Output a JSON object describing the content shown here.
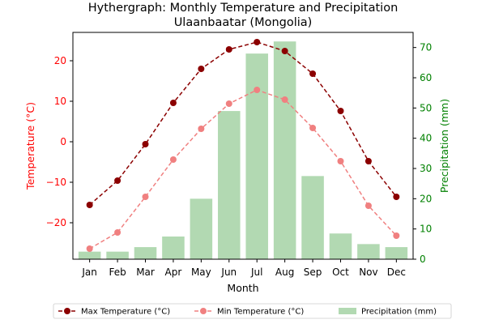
{
  "chart_data": {
    "type": "bar",
    "title": "Hythergraph: Monthly Temperature and Precipitation",
    "subtitle": "Ulaanbaatar (Mongolia)",
    "xlabel": "Month",
    "categories": [
      "Jan",
      "Feb",
      "Mar",
      "Apr",
      "May",
      "Jun",
      "Jul",
      "Aug",
      "Sep",
      "Oct",
      "Nov",
      "Dec"
    ],
    "left_axis": {
      "label": "Temperature (°C)",
      "color": "#ff0000",
      "lim": [
        -29,
        27
      ],
      "ticks": [
        -20,
        -10,
        0,
        10,
        20
      ],
      "tick_labels": [
        "−20",
        "−10",
        "0",
        "10",
        "20"
      ]
    },
    "right_axis": {
      "label": "Precipitation (mm)",
      "color": "#008000",
      "lim": [
        0,
        75
      ],
      "ticks": [
        0,
        10,
        20,
        30,
        40,
        50,
        60,
        70
      ],
      "tick_labels": [
        "0",
        "10",
        "20",
        "30",
        "40",
        "50",
        "60",
        "70"
      ]
    },
    "series": [
      {
        "name": "Max Temperature (°C)",
        "kind": "line",
        "axis": "left",
        "color": "#8b0000",
        "style": "dashed-marker",
        "values": [
          -15.6,
          -9.6,
          -0.6,
          9.6,
          18.0,
          22.8,
          24.6,
          22.4,
          16.8,
          7.6,
          -4.8,
          -13.6
        ]
      },
      {
        "name": "Min Temperature (°C)",
        "kind": "line",
        "axis": "left",
        "color": "#f08080",
        "style": "dashed-marker",
        "values": [
          -26.4,
          -22.4,
          -13.6,
          -4.4,
          3.2,
          9.4,
          12.8,
          10.4,
          3.4,
          -4.8,
          -15.8,
          -23.2
        ]
      },
      {
        "name": "Precipitation (mm)",
        "kind": "bar",
        "axis": "right",
        "color": "#b2d9b2",
        "values": [
          2.5,
          2.5,
          4.0,
          7.5,
          20.0,
          49.0,
          68.0,
          72.0,
          27.5,
          8.5,
          5.0,
          4.0
        ]
      }
    ],
    "legend_placement": "bottom-center",
    "grid": false
  }
}
